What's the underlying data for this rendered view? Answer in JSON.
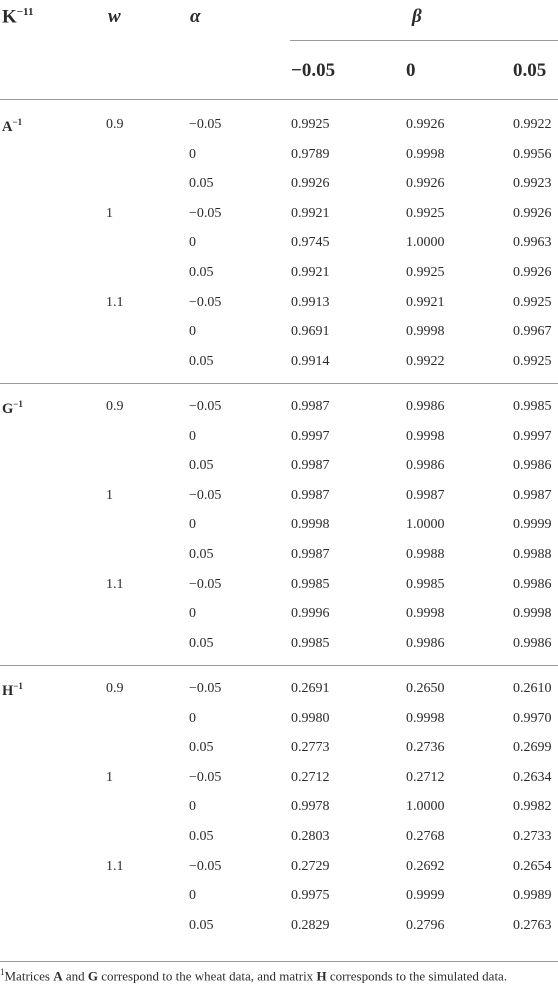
{
  "header": {
    "k_main": "K",
    "k_sup": "−11",
    "w": "w",
    "alpha": "α",
    "beta": "β",
    "beta_values": [
      "−0.05",
      "0",
      "0.05"
    ]
  },
  "groups": [
    {
      "matrix": "A",
      "sup": "−1",
      "blocks": [
        {
          "w": "0.9",
          "rows": [
            {
              "alpha": "−0.05",
              "values": [
                "0.9925",
                "0.9926",
                "0.9922"
              ]
            },
            {
              "alpha": "0",
              "values": [
                "0.9789",
                "0.9998",
                "0.9956"
              ]
            },
            {
              "alpha": "0.05",
              "values": [
                "0.9926",
                "0.9926",
                "0.9923"
              ]
            }
          ]
        },
        {
          "w": "1",
          "rows": [
            {
              "alpha": "−0.05",
              "values": [
                "0.9921",
                "0.9925",
                "0.9926"
              ]
            },
            {
              "alpha": "0",
              "values": [
                "0.9745",
                "1.0000",
                "0.9963"
              ]
            },
            {
              "alpha": "0.05",
              "values": [
                "0.9921",
                "0.9925",
                "0.9926"
              ]
            }
          ]
        },
        {
          "w": "1.1",
          "rows": [
            {
              "alpha": "−0.05",
              "values": [
                "0.9913",
                "0.9921",
                "0.9925"
              ]
            },
            {
              "alpha": "0",
              "values": [
                "0.9691",
                "0.9998",
                "0.9967"
              ]
            },
            {
              "alpha": "0.05",
              "values": [
                "0.9914",
                "0.9922",
                "0.9925"
              ]
            }
          ]
        }
      ]
    },
    {
      "matrix": "G",
      "sup": "−1",
      "blocks": [
        {
          "w": "0.9",
          "rows": [
            {
              "alpha": "−0.05",
              "values": [
                "0.9987",
                "0.9986",
                "0.9985"
              ]
            },
            {
              "alpha": "0",
              "values": [
                "0.9997",
                "0.9998",
                "0.9997"
              ]
            },
            {
              "alpha": "0.05",
              "values": [
                "0.9987",
                "0.9986",
                "0.9986"
              ]
            }
          ]
        },
        {
          "w": "1",
          "rows": [
            {
              "alpha": "−0.05",
              "values": [
                "0.9987",
                "0.9987",
                "0.9987"
              ]
            },
            {
              "alpha": "0",
              "values": [
                "0.9998",
                "1.0000",
                "0.9999"
              ]
            },
            {
              "alpha": "0.05",
              "values": [
                "0.9987",
                "0.9988",
                "0.9988"
              ]
            }
          ]
        },
        {
          "w": "1.1",
          "rows": [
            {
              "alpha": "−0.05",
              "values": [
                "0.9985",
                "0.9985",
                "0.9986"
              ]
            },
            {
              "alpha": "0",
              "values": [
                "0.9996",
                "0.9998",
                "0.9998"
              ]
            },
            {
              "alpha": "0.05",
              "values": [
                "0.9985",
                "0.9986",
                "0.9986"
              ]
            }
          ]
        }
      ]
    },
    {
      "matrix": "H",
      "sup": "−1",
      "blocks": [
        {
          "w": "0.9",
          "rows": [
            {
              "alpha": "−0.05",
              "values": [
                "0.2691",
                "0.2650",
                "0.2610"
              ]
            },
            {
              "alpha": "0",
              "values": [
                "0.9980",
                "0.9998",
                "0.9970"
              ]
            },
            {
              "alpha": "0.05",
              "values": [
                "0.2773",
                "0.2736",
                "0.2699"
              ]
            }
          ]
        },
        {
          "w": "1",
          "rows": [
            {
              "alpha": "−0.05",
              "values": [
                "0.2712",
                "0.2712",
                "0.2634"
              ]
            },
            {
              "alpha": "0",
              "values": [
                "0.9978",
                "1.0000",
                "0.9982"
              ]
            },
            {
              "alpha": "0.05",
              "values": [
                "0.2803",
                "0.2768",
                "0.2733"
              ]
            }
          ]
        },
        {
          "w": "1.1",
          "rows": [
            {
              "alpha": "−0.05",
              "values": [
                "0.2729",
                "0.2692",
                "0.2654"
              ]
            },
            {
              "alpha": "0",
              "values": [
                "0.9975",
                "0.9999",
                "0.9989"
              ]
            },
            {
              "alpha": "0.05",
              "values": [
                "0.2829",
                "0.2796",
                "0.2763"
              ]
            }
          ]
        }
      ]
    }
  ],
  "footnote": {
    "mark": "1",
    "t1": "Matrices ",
    "b1": "A",
    "t2": " and ",
    "b2": "G",
    "t3": " correspond to the wheat data, and matrix ",
    "b3": "H",
    "t4": " corresponds to the simulated data."
  }
}
